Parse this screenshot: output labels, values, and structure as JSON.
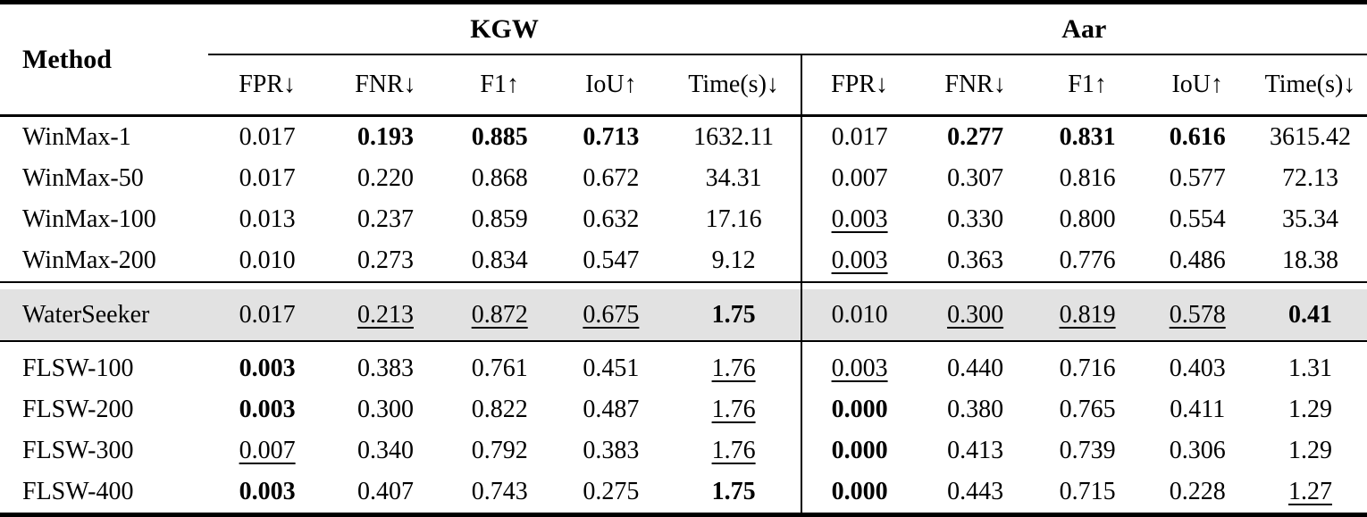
{
  "table": {
    "method_header": "Method",
    "groups": [
      {
        "label": "KGW"
      },
      {
        "label": "Aar"
      }
    ],
    "metric_headers": [
      "FPR↓",
      "FNR↓",
      "F1↑",
      "IoU↑",
      "Time(s)↓"
    ],
    "metric_keys": [
      "fpr",
      "fnr",
      "f1",
      "iou",
      "time"
    ],
    "highlight_color": "#e2e2e2",
    "rule_color": "#000000",
    "sections": [
      {
        "highlight": false,
        "rows": [
          {
            "method": "WinMax-1",
            "cells": [
              {
                "v": "0.017",
                "style": "plain"
              },
              {
                "v": "0.193",
                "style": "bold"
              },
              {
                "v": "0.885",
                "style": "bold"
              },
              {
                "v": "0.713",
                "style": "bold"
              },
              {
                "v": "1632.11",
                "style": "plain"
              },
              {
                "v": "0.017",
                "style": "plain"
              },
              {
                "v": "0.277",
                "style": "bold"
              },
              {
                "v": "0.831",
                "style": "bold"
              },
              {
                "v": "0.616",
                "style": "bold"
              },
              {
                "v": "3615.42",
                "style": "plain"
              }
            ]
          },
          {
            "method": "WinMax-50",
            "cells": [
              {
                "v": "0.017",
                "style": "plain"
              },
              {
                "v": "0.220",
                "style": "plain"
              },
              {
                "v": "0.868",
                "style": "plain"
              },
              {
                "v": "0.672",
                "style": "plain"
              },
              {
                "v": "34.31",
                "style": "plain"
              },
              {
                "v": "0.007",
                "style": "plain"
              },
              {
                "v": "0.307",
                "style": "plain"
              },
              {
                "v": "0.816",
                "style": "plain"
              },
              {
                "v": "0.577",
                "style": "plain"
              },
              {
                "v": "72.13",
                "style": "plain"
              }
            ]
          },
          {
            "method": "WinMax-100",
            "cells": [
              {
                "v": "0.013",
                "style": "plain"
              },
              {
                "v": "0.237",
                "style": "plain"
              },
              {
                "v": "0.859",
                "style": "plain"
              },
              {
                "v": "0.632",
                "style": "plain"
              },
              {
                "v": "17.16",
                "style": "plain"
              },
              {
                "v": "0.003",
                "style": "underline"
              },
              {
                "v": "0.330",
                "style": "plain"
              },
              {
                "v": "0.800",
                "style": "plain"
              },
              {
                "v": "0.554",
                "style": "plain"
              },
              {
                "v": "35.34",
                "style": "plain"
              }
            ]
          },
          {
            "method": "WinMax-200",
            "cells": [
              {
                "v": "0.010",
                "style": "plain"
              },
              {
                "v": "0.273",
                "style": "plain"
              },
              {
                "v": "0.834",
                "style": "plain"
              },
              {
                "v": "0.547",
                "style": "plain"
              },
              {
                "v": "9.12",
                "style": "plain"
              },
              {
                "v": "0.003",
                "style": "underline"
              },
              {
                "v": "0.363",
                "style": "plain"
              },
              {
                "v": "0.776",
                "style": "plain"
              },
              {
                "v": "0.486",
                "style": "plain"
              },
              {
                "v": "18.38",
                "style": "plain"
              }
            ]
          }
        ]
      },
      {
        "highlight": true,
        "rows": [
          {
            "method": "WaterSeeker",
            "cells": [
              {
                "v": "0.017",
                "style": "plain"
              },
              {
                "v": "0.213",
                "style": "underline"
              },
              {
                "v": "0.872",
                "style": "underline"
              },
              {
                "v": "0.675",
                "style": "underline"
              },
              {
                "v": "1.75",
                "style": "bold"
              },
              {
                "v": "0.010",
                "style": "plain"
              },
              {
                "v": "0.300",
                "style": "underline"
              },
              {
                "v": "0.819",
                "style": "underline"
              },
              {
                "v": "0.578",
                "style": "underline"
              },
              {
                "v": "0.41",
                "style": "bold"
              }
            ]
          }
        ]
      },
      {
        "highlight": false,
        "rows": [
          {
            "method": "FLSW-100",
            "cells": [
              {
                "v": "0.003",
                "style": "bold"
              },
              {
                "v": "0.383",
                "style": "plain"
              },
              {
                "v": "0.761",
                "style": "plain"
              },
              {
                "v": "0.451",
                "style": "plain"
              },
              {
                "v": "1.76",
                "style": "underline"
              },
              {
                "v": "0.003",
                "style": "underline"
              },
              {
                "v": "0.440",
                "style": "plain"
              },
              {
                "v": "0.716",
                "style": "plain"
              },
              {
                "v": "0.403",
                "style": "plain"
              },
              {
                "v": "1.31",
                "style": "plain"
              }
            ]
          },
          {
            "method": "FLSW-200",
            "cells": [
              {
                "v": "0.003",
                "style": "bold"
              },
              {
                "v": "0.300",
                "style": "plain"
              },
              {
                "v": "0.822",
                "style": "plain"
              },
              {
                "v": "0.487",
                "style": "plain"
              },
              {
                "v": "1.76",
                "style": "underline"
              },
              {
                "v": "0.000",
                "style": "bold"
              },
              {
                "v": "0.380",
                "style": "plain"
              },
              {
                "v": "0.765",
                "style": "plain"
              },
              {
                "v": "0.411",
                "style": "plain"
              },
              {
                "v": "1.29",
                "style": "plain"
              }
            ]
          },
          {
            "method": "FLSW-300",
            "cells": [
              {
                "v": "0.007",
                "style": "underline"
              },
              {
                "v": "0.340",
                "style": "plain"
              },
              {
                "v": "0.792",
                "style": "plain"
              },
              {
                "v": "0.383",
                "style": "plain"
              },
              {
                "v": "1.76",
                "style": "underline"
              },
              {
                "v": "0.000",
                "style": "bold"
              },
              {
                "v": "0.413",
                "style": "plain"
              },
              {
                "v": "0.739",
                "style": "plain"
              },
              {
                "v": "0.306",
                "style": "plain"
              },
              {
                "v": "1.29",
                "style": "plain"
              }
            ]
          },
          {
            "method": "FLSW-400",
            "cells": [
              {
                "v": "0.003",
                "style": "bold"
              },
              {
                "v": "0.407",
                "style": "plain"
              },
              {
                "v": "0.743",
                "style": "plain"
              },
              {
                "v": "0.275",
                "style": "plain"
              },
              {
                "v": "1.75",
                "style": "bold"
              },
              {
                "v": "0.000",
                "style": "bold"
              },
              {
                "v": "0.443",
                "style": "plain"
              },
              {
                "v": "0.715",
                "style": "plain"
              },
              {
                "v": "0.228",
                "style": "plain"
              },
              {
                "v": "1.27",
                "style": "underline"
              }
            ]
          }
        ]
      }
    ]
  }
}
